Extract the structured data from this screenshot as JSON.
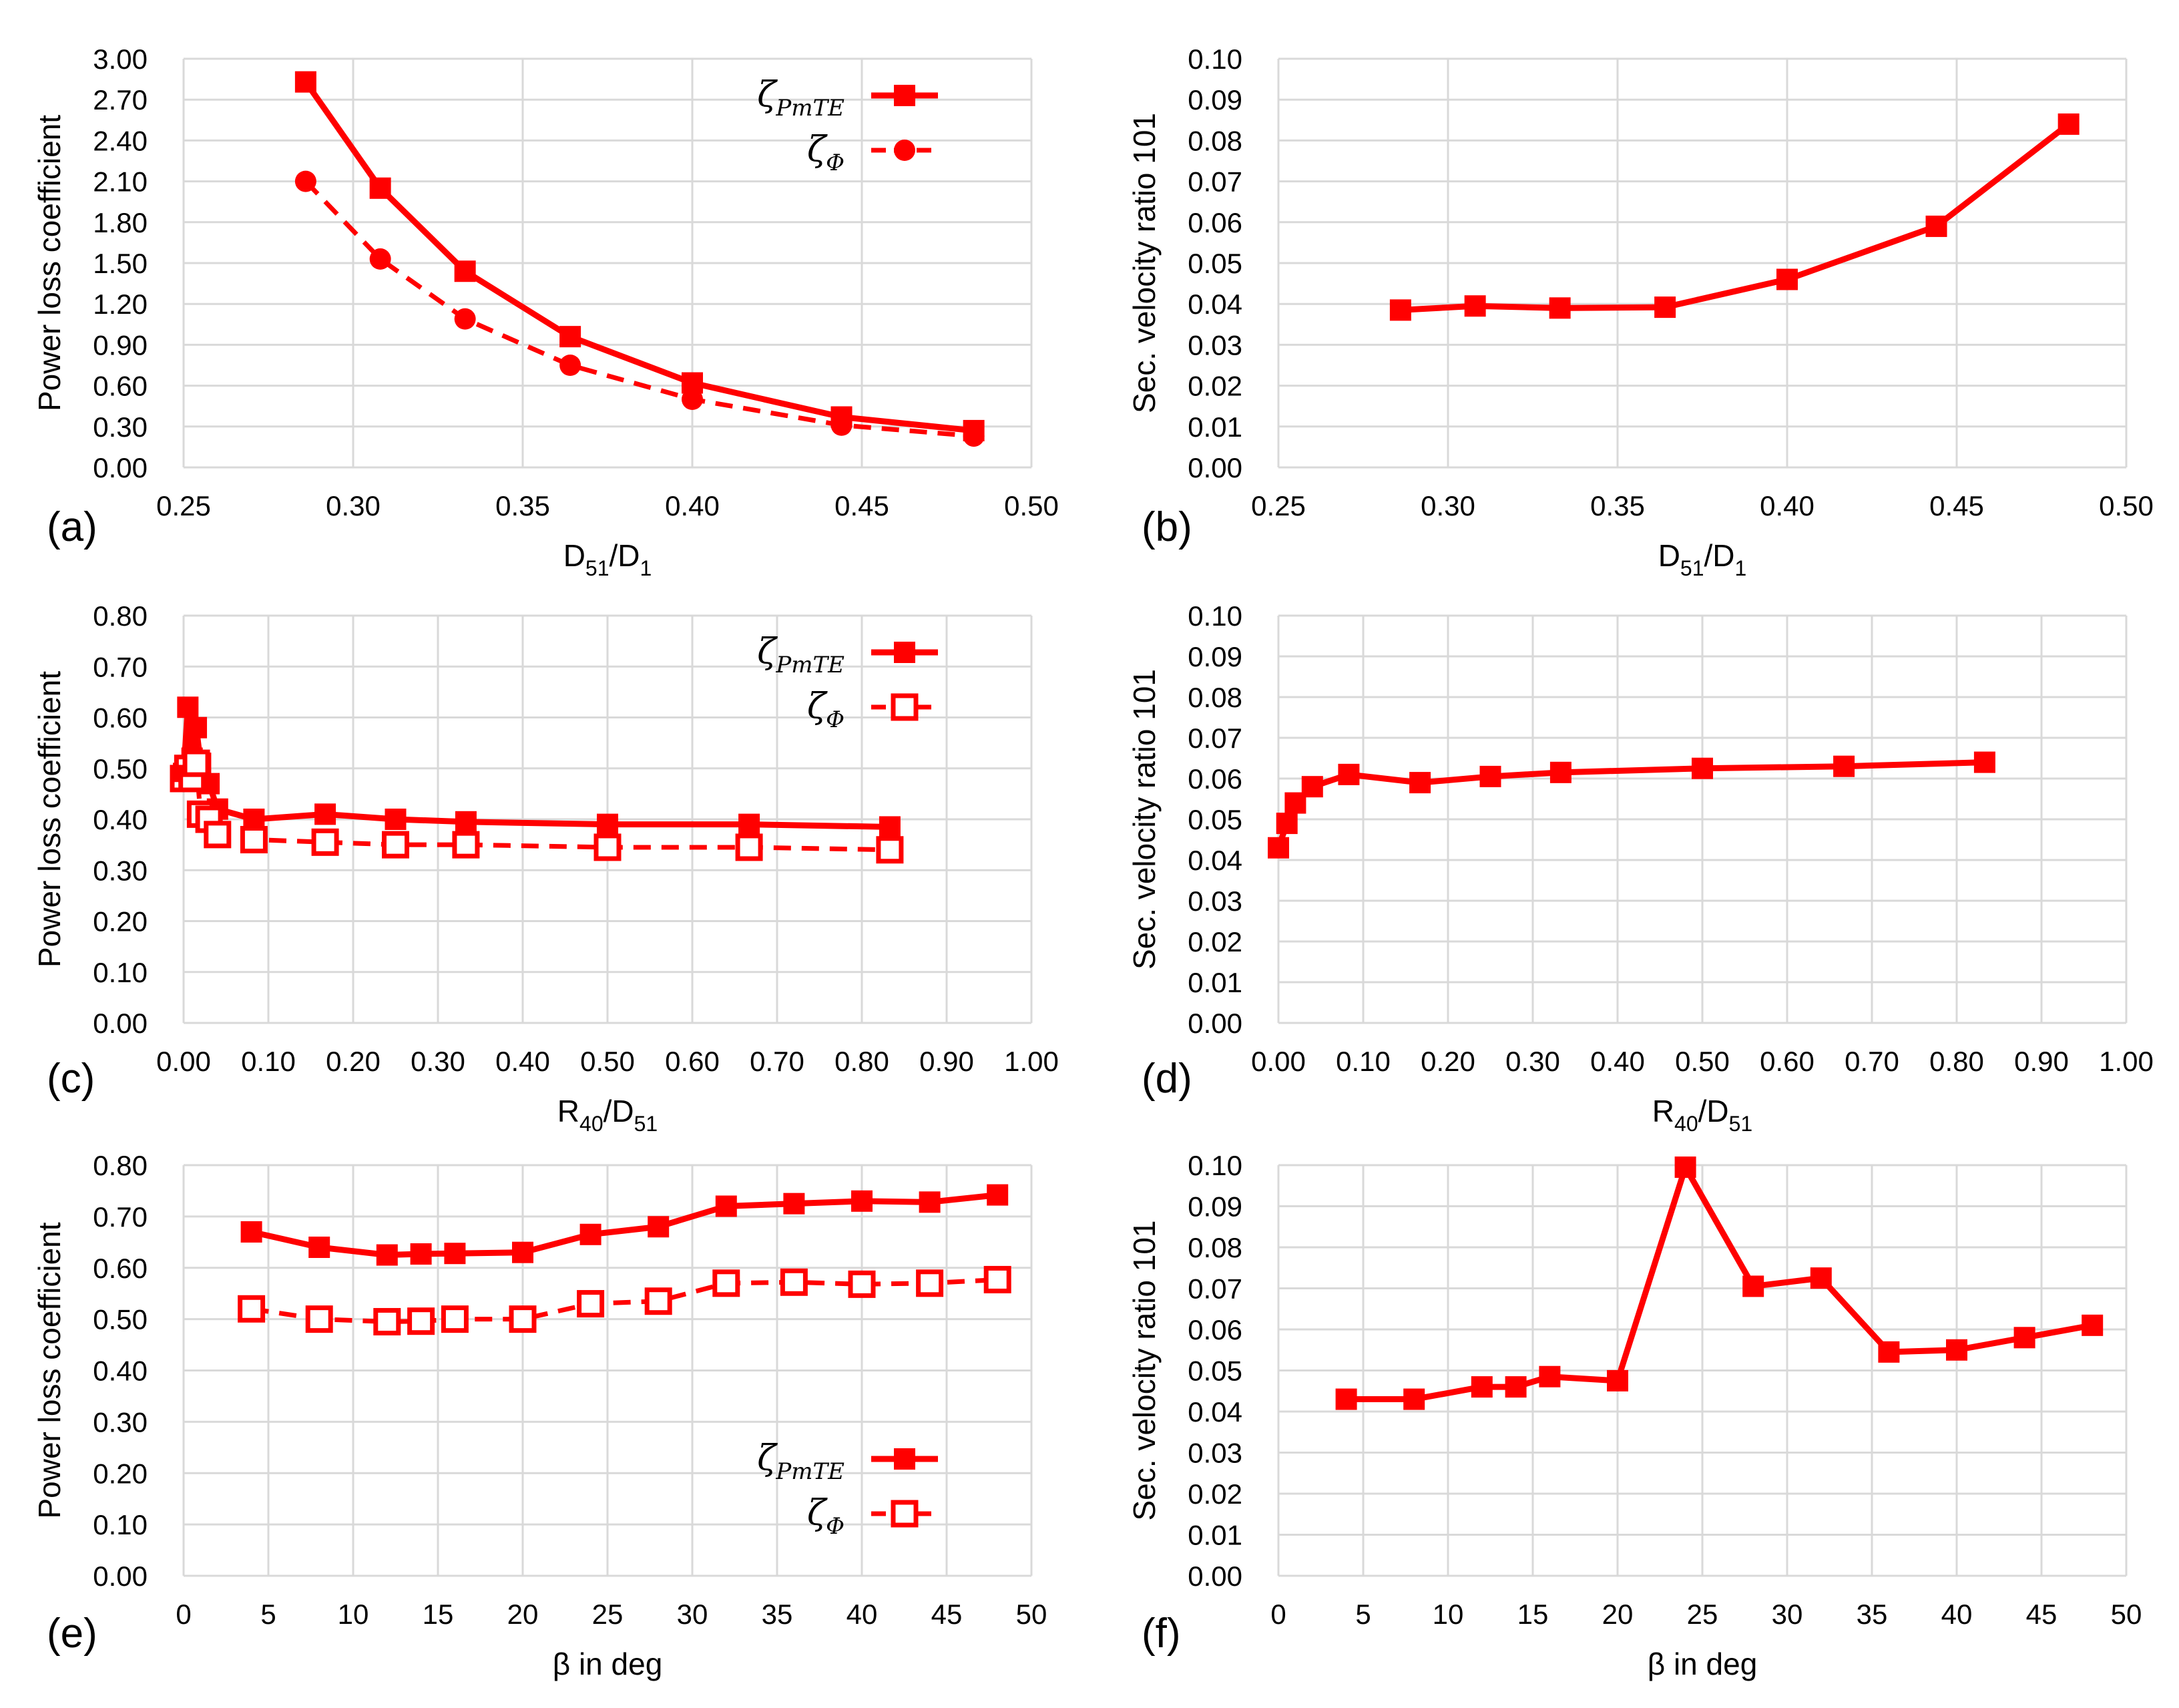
{
  "chart_data": [
    {
      "panel": "(a)",
      "type": "line",
      "xlabel": "D51/D1",
      "xlabel_parts": {
        "main": "D",
        "sub": "51",
        "sep": "/D",
        "sub2": "1"
      },
      "ylabel": "Power loss coefficient",
      "xlim": [
        0.25,
        0.5
      ],
      "ylim": [
        0.0,
        3.0
      ],
      "xticks": [
        "0.25",
        "0.30",
        "0.35",
        "0.40",
        "0.45",
        "0.50"
      ],
      "yticks": [
        "0.00",
        "0.30",
        "0.60",
        "0.90",
        "1.20",
        "1.50",
        "1.80",
        "2.10",
        "2.40",
        "2.70",
        "3.00"
      ],
      "legend": "top-right",
      "series": [
        {
          "name": "ζPmTE",
          "label_main": "ζ",
          "label_sub": "PmTE",
          "style": "solid",
          "marker": "square",
          "x": [
            0.286,
            0.308,
            0.333,
            0.364,
            0.4,
            0.444,
            0.483
          ],
          "y": [
            2.83,
            2.05,
            1.44,
            0.96,
            0.62,
            0.37,
            0.27
          ]
        },
        {
          "name": "ζΦ",
          "label_main": "ζ",
          "label_sub": "Φ",
          "style": "dashed",
          "marker": "circle",
          "x": [
            0.286,
            0.308,
            0.333,
            0.364,
            0.4,
            0.444,
            0.483
          ],
          "y": [
            2.1,
            1.53,
            1.09,
            0.75,
            0.5,
            0.31,
            0.23
          ]
        }
      ]
    },
    {
      "panel": "(b)",
      "type": "line",
      "xlabel": "D51/D1",
      "xlabel_parts": {
        "main": "D",
        "sub": "51",
        "sep": "/D",
        "sub2": "1"
      },
      "ylabel": "Sec. velocity ratio 101",
      "xlim": [
        0.25,
        0.5
      ],
      "ylim": [
        0.0,
        0.1
      ],
      "xticks": [
        "0.25",
        "0.30",
        "0.35",
        "0.40",
        "0.45",
        "0.50"
      ],
      "yticks": [
        "0.00",
        "0.01",
        "0.02",
        "0.03",
        "0.04",
        "0.05",
        "0.06",
        "0.07",
        "0.08",
        "0.09",
        "0.10"
      ],
      "series": [
        {
          "name": "Sec. velocity ratio",
          "style": "solid",
          "marker": "square",
          "x": [
            0.286,
            0.308,
            0.333,
            0.364,
            0.4,
            0.444,
            0.483
          ],
          "y": [
            0.0385,
            0.0395,
            0.039,
            0.0392,
            0.046,
            0.059,
            0.084
          ]
        }
      ]
    },
    {
      "panel": "(c)",
      "type": "line",
      "xlabel": "R40/D51",
      "xlabel_parts": {
        "main": "R",
        "sub": "40",
        "sep": "/D",
        "sub2": "51"
      },
      "ylabel": "Power loss coefficient",
      "xlim": [
        0.0,
        1.0
      ],
      "ylim": [
        0.0,
        0.8
      ],
      "xticks": [
        "0.00",
        "0.10",
        "0.20",
        "0.30",
        "0.40",
        "0.50",
        "0.60",
        "0.70",
        "0.80",
        "0.90",
        "1.00"
      ],
      "yticks": [
        "0.00",
        "0.10",
        "0.20",
        "0.30",
        "0.40",
        "0.50",
        "0.60",
        "0.70",
        "0.80"
      ],
      "legend": "top-right",
      "series": [
        {
          "name": "ζPmTE",
          "label_main": "ζ",
          "label_sub": "PmTE",
          "style": "solid",
          "marker": "square",
          "x": [
            0.0,
            0.005,
            0.01,
            0.015,
            0.02,
            0.03,
            0.04,
            0.083,
            0.167,
            0.25,
            0.333,
            0.5,
            0.667,
            0.833
          ],
          "y": [
            0.49,
            0.62,
            0.52,
            0.58,
            0.51,
            0.47,
            0.42,
            0.4,
            0.41,
            0.4,
            0.395,
            0.39,
            0.39,
            0.385
          ]
        },
        {
          "name": "ζΦ",
          "label_main": "ζ",
          "label_sub": "Φ",
          "style": "dashed",
          "marker": "open-square",
          "x": [
            0.0,
            0.005,
            0.01,
            0.015,
            0.02,
            0.03,
            0.04,
            0.083,
            0.167,
            0.25,
            0.333,
            0.5,
            0.667,
            0.833
          ],
          "y": [
            0.48,
            0.5,
            0.48,
            0.51,
            0.41,
            0.4,
            0.37,
            0.36,
            0.355,
            0.35,
            0.35,
            0.345,
            0.345,
            0.34
          ]
        }
      ]
    },
    {
      "panel": "(d)",
      "type": "line",
      "xlabel": "R40/D51",
      "xlabel_parts": {
        "main": "R",
        "sub": "40",
        "sep": "/D",
        "sub2": "51"
      },
      "ylabel": "Sec. velocity ratio 101",
      "xlim": [
        0.0,
        1.0
      ],
      "ylim": [
        0.0,
        0.1
      ],
      "xticks": [
        "0.00",
        "0.10",
        "0.20",
        "0.30",
        "0.40",
        "0.50",
        "0.60",
        "0.70",
        "0.80",
        "0.90",
        "1.00"
      ],
      "yticks": [
        "0.00",
        "0.01",
        "0.02",
        "0.03",
        "0.04",
        "0.05",
        "0.06",
        "0.07",
        "0.08",
        "0.09",
        "0.10"
      ],
      "series": [
        {
          "name": "Sec. velocity ratio",
          "style": "solid",
          "marker": "square",
          "x": [
            0.0,
            0.01,
            0.02,
            0.04,
            0.083,
            0.167,
            0.25,
            0.333,
            0.5,
            0.667,
            0.833
          ],
          "y": [
            0.043,
            0.049,
            0.054,
            0.058,
            0.061,
            0.059,
            0.0605,
            0.0615,
            0.0625,
            0.063,
            0.064
          ]
        }
      ]
    },
    {
      "panel": "(e)",
      "type": "line",
      "xlabel": "β in deg",
      "ylabel": "Power loss coefficient",
      "xlim": [
        0,
        50
      ],
      "ylim": [
        0.0,
        0.8
      ],
      "xticks": [
        "0",
        "5",
        "10",
        "15",
        "20",
        "25",
        "30",
        "35",
        "40",
        "45",
        "50"
      ],
      "yticks": [
        "0.00",
        "0.10",
        "0.20",
        "0.30",
        "0.40",
        "0.50",
        "0.60",
        "0.70",
        "0.80"
      ],
      "legend": "bottom-right",
      "series": [
        {
          "name": "ζPmTE",
          "label_main": "ζ",
          "label_sub": "PmTE",
          "style": "solid",
          "marker": "square",
          "x": [
            4,
            8,
            12,
            14,
            16,
            20,
            24,
            28,
            32,
            36,
            40,
            44,
            48
          ],
          "y": [
            0.67,
            0.64,
            0.625,
            0.627,
            0.628,
            0.63,
            0.665,
            0.68,
            0.72,
            0.725,
            0.73,
            0.728,
            0.742
          ]
        },
        {
          "name": "ζΦ",
          "label_main": "ζ",
          "label_sub": "Φ",
          "style": "dashed",
          "marker": "open-square",
          "x": [
            4,
            8,
            12,
            14,
            16,
            20,
            24,
            28,
            32,
            36,
            40,
            44,
            48
          ],
          "y": [
            0.52,
            0.5,
            0.495,
            0.496,
            0.5,
            0.5,
            0.53,
            0.535,
            0.57,
            0.572,
            0.568,
            0.57,
            0.577
          ]
        }
      ]
    },
    {
      "panel": "(f)",
      "type": "line",
      "xlabel": "β in deg",
      "ylabel": "Sec. velocity ratio 101",
      "xlim": [
        0,
        50
      ],
      "ylim": [
        0.0,
        0.1
      ],
      "xticks": [
        "0",
        "5",
        "10",
        "15",
        "20",
        "25",
        "30",
        "35",
        "40",
        "45",
        "50"
      ],
      "yticks": [
        "0.00",
        "0.01",
        "0.02",
        "0.03",
        "0.04",
        "0.05",
        "0.06",
        "0.07",
        "0.08",
        "0.09",
        "0.10"
      ],
      "series": [
        {
          "name": "Sec. velocity ratio",
          "style": "solid",
          "marker": "square",
          "x": [
            4,
            8,
            12,
            14,
            16,
            20,
            24,
            28,
            32,
            36,
            40,
            44,
            48
          ],
          "y": [
            0.043,
            0.043,
            0.046,
            0.046,
            0.0485,
            0.0475,
            0.0995,
            0.0705,
            0.0725,
            0.0545,
            0.055,
            0.058,
            0.061
          ]
        }
      ]
    }
  ],
  "colors": {
    "series": "#ff0000",
    "grid": "#d9d9d9",
    "text": "#000000"
  }
}
